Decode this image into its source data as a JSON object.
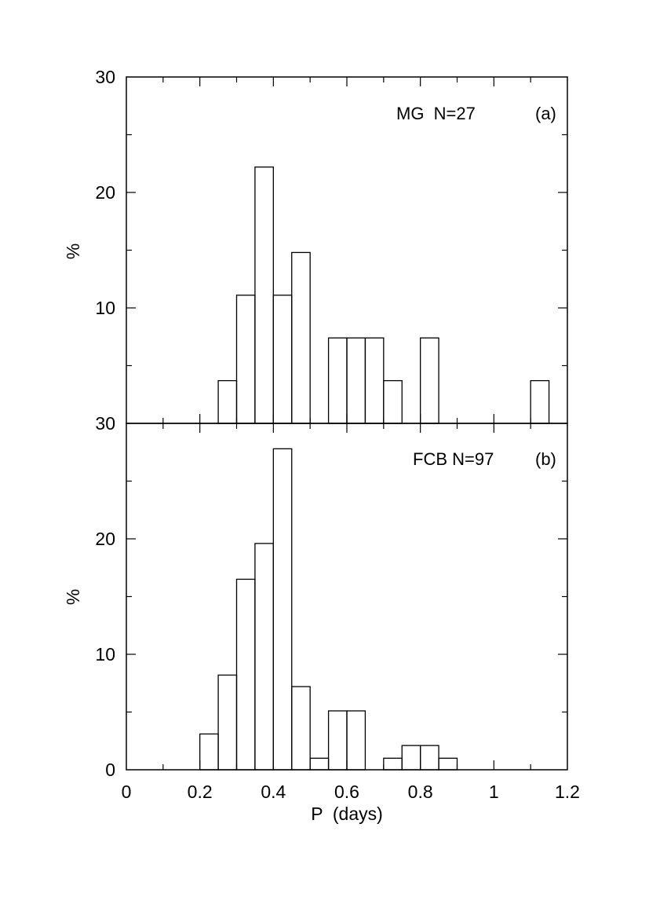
{
  "chart_data": [
    {
      "type": "bar",
      "panel_label": "(a)",
      "annotation": "MG  N=27",
      "x_bin_edges": [
        0.25,
        0.3,
        0.35,
        0.4,
        0.45,
        0.5,
        0.55,
        0.6,
        0.65,
        0.7,
        0.75,
        0.8,
        0.85,
        0.9,
        0.95,
        1.0,
        1.05,
        1.1,
        1.15
      ],
      "values": [
        3.7,
        11.1,
        22.2,
        11.1,
        14.8,
        0,
        7.4,
        7.4,
        7.4,
        3.7,
        0,
        7.4,
        0,
        0,
        0,
        0,
        0,
        3.7
      ],
      "bin_width": 0.05,
      "xlim": [
        0,
        1.2
      ],
      "ylim": [
        0,
        30
      ],
      "ylabel": "%",
      "xlabel": "",
      "y_ticks": [
        10,
        20,
        30
      ],
      "y_tick_labels": [
        "10",
        "20",
        "30"
      ],
      "bottom_label": "30",
      "grid": false
    },
    {
      "type": "bar",
      "panel_label": "(b)",
      "annotation": "FCB N=97",
      "x_bin_edges": [
        0.2,
        0.25,
        0.3,
        0.35,
        0.4,
        0.45,
        0.5,
        0.55,
        0.6,
        0.65,
        0.7,
        0.75,
        0.8,
        0.85,
        0.9
      ],
      "values": [
        3.1,
        8.2,
        16.5,
        19.6,
        27.8,
        7.2,
        1.0,
        5.1,
        5.1,
        0,
        1.0,
        2.1,
        2.1,
        1.0
      ],
      "bin_width": 0.05,
      "xlim": [
        0,
        1.2
      ],
      "ylim": [
        0,
        30
      ],
      "ylabel": "%",
      "xlabel": "P  (days)",
      "y_ticks": [
        0,
        10,
        20
      ],
      "y_tick_labels": [
        "0",
        "10",
        "20"
      ],
      "x_ticks": [
        0,
        0.2,
        0.4,
        0.6,
        0.8,
        1,
        1.2
      ],
      "x_tick_labels": [
        "0",
        "0.2",
        "0.4",
        "0.6",
        "0.8",
        "1",
        "1.2"
      ],
      "grid": false
    }
  ]
}
